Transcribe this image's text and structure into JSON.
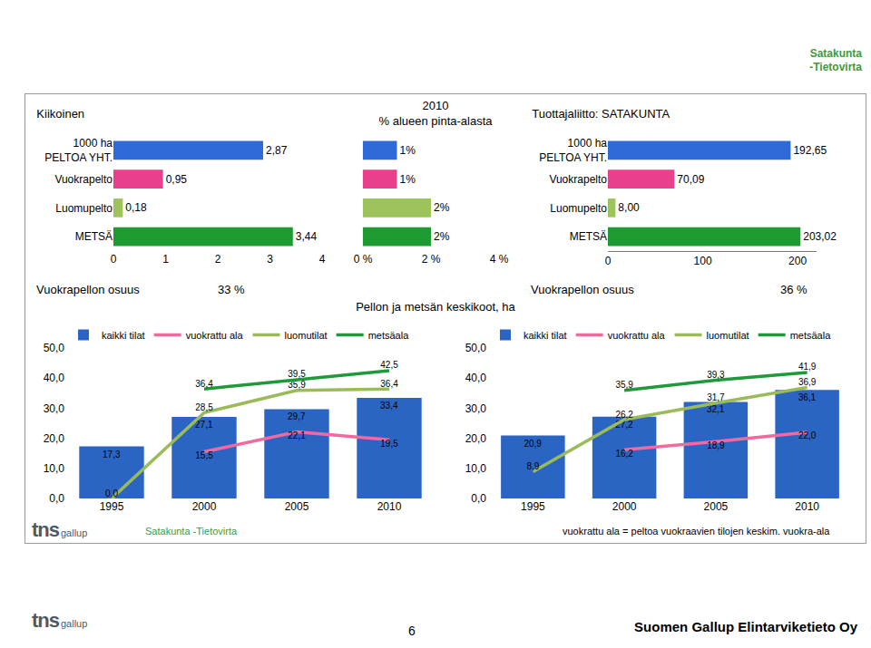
{
  "page": {
    "brand_lines": [
      "Satakunta",
      "-Tietovirta"
    ],
    "brand": "Satakunta -Tietovirta",
    "logo": [
      "tns",
      "gallup"
    ],
    "shares": [
      {
        "label": "Vuokrapellon osuus",
        "value": "33 %"
      },
      {
        "label": "Vuokrapellon osuus",
        "value": "36 %"
      }
    ],
    "section_title": "Pellon ja metsän keskikoot, ha",
    "note": "vuokrattu ala = peltoa vuokraavien tilojen keskim. vuokra-ala",
    "page_number": "6",
    "company": "Suomen Gallup Elintarviketieto Oy"
  },
  "chart_data": [
    {
      "type": "bar",
      "title": "Kiikoinen",
      "orientation": "horizontal",
      "categories": [
        "1000 ha\nPELTOA YHT.",
        "Vuokrapelto",
        "Luomupelto",
        "METSÄ"
      ],
      "values": [
        2.87,
        0.95,
        0.18,
        3.44
      ],
      "value_labels": [
        "2,87",
        "0,95",
        "0,18",
        "3,44"
      ],
      "colors": [
        "#2f6bd8",
        "#e8408a",
        "#9dc35a",
        "#1e9a32"
      ],
      "xlim": [
        0,
        4
      ],
      "xticks": [
        0,
        1,
        2,
        3,
        4
      ],
      "data_labels": true,
      "grid": false
    },
    {
      "type": "bar",
      "title": "2010",
      "subtitle": "% alueen pinta-alasta",
      "orientation": "horizontal",
      "categories": [
        null,
        null,
        null,
        null
      ],
      "values": [
        1,
        1,
        2,
        2
      ],
      "value_labels": [
        "1%",
        "1%",
        "2%",
        "2%"
      ],
      "colors": [
        "#2f6bd8",
        "#e8408a",
        "#9dc35a",
        "#1e9a32"
      ],
      "xlim": [
        0,
        4
      ],
      "xticks": [
        {
          "value": 0,
          "label": "0 %"
        },
        {
          "value": 2,
          "label": "2 %"
        },
        {
          "value": 4,
          "label": "4 %"
        }
      ],
      "tick_labels": "x",
      "data_labels": true,
      "grid": false
    },
    {
      "type": "bar",
      "title": "Tuottajaliitto: SATAKUNTA",
      "orientation": "horizontal",
      "categories": [
        "1000 ha\nPELTOA YHT.",
        "Vuokrapelto",
        "Luomupelto",
        "METSÄ"
      ],
      "values": [
        192.65,
        70.09,
        8.0,
        203.02
      ],
      "value_labels": [
        "192,65",
        "70,09",
        "8,00",
        "203,02"
      ],
      "colors": [
        "#2f6bd8",
        "#e8408a",
        "#9dc35a",
        "#1e9a32"
      ],
      "xlim": [
        0,
        220
      ],
      "xticks": [
        0,
        100,
        200
      ],
      "data_labels": true,
      "grid": false
    },
    {
      "type": "bar",
      "categories": [
        "1995",
        "2000",
        "2005",
        "2010"
      ],
      "series": [
        {
          "name": "kaikki tilat",
          "type": "bar",
          "color": "#2b65c4",
          "values": [
            17.3,
            27.1,
            29.7,
            33.4
          ],
          "value_labels": [
            "17,3",
            "27,1",
            "29,7",
            "33,4"
          ]
        },
        {
          "name": "vuokrattu ala",
          "type": "line",
          "color": "#f06aa0",
          "values": [
            null,
            15.5,
            22.1,
            19.5
          ],
          "value_labels": [
            null,
            "15,5",
            "22,1",
            "19,5"
          ]
        },
        {
          "name": "luomutilat",
          "type": "line",
          "color": "#9bbb59",
          "values": [
            0.0,
            28.5,
            35.9,
            36.4
          ],
          "value_labels": [
            "0,0",
            "28,5",
            "35,9",
            "36,4"
          ]
        },
        {
          "name": "metsäala",
          "type": "line",
          "color": "#1f9a3a",
          "values": [
            null,
            36.4,
            39.5,
            42.5
          ],
          "value_labels": [
            null,
            "36,4",
            "39,5",
            "42,5"
          ]
        }
      ],
      "ylim": [
        0,
        50
      ],
      "yticks": [
        {
          "value": 0,
          "label": "0,0"
        },
        {
          "value": 10,
          "label": "10,0"
        },
        {
          "value": 20,
          "label": "20,0"
        },
        {
          "value": 30,
          "label": "30,0"
        },
        {
          "value": 40,
          "label": "40,0"
        },
        {
          "value": 50,
          "label": "50,0"
        }
      ],
      "legend": "top",
      "data_labels": true,
      "grid": false
    },
    {
      "type": "bar",
      "categories": [
        "1995",
        "2000",
        "2005",
        "2010"
      ],
      "series": [
        {
          "name": "kaikki tilat",
          "type": "bar",
          "color": "#2b65c4",
          "values": [
            20.9,
            27.2,
            32.1,
            36.1
          ],
          "value_labels": [
            "20,9",
            "27,2",
            "32,1",
            "36,1"
          ]
        },
        {
          "name": "vuokrattu ala",
          "type": "line",
          "color": "#f06aa0",
          "values": [
            null,
            16.2,
            18.9,
            22.0
          ],
          "value_labels": [
            null,
            "16,2",
            "18,9",
            "22,0"
          ]
        },
        {
          "name": "luomutilat",
          "type": "line",
          "color": "#9bbb59",
          "values": [
            8.9,
            26.2,
            31.7,
            36.9
          ],
          "value_labels": [
            "8,9",
            "26,2",
            "31,7",
            "36,9"
          ]
        },
        {
          "name": "metsäala",
          "type": "line",
          "color": "#1f9a3a",
          "values": [
            null,
            35.9,
            39.3,
            41.9
          ],
          "value_labels": [
            null,
            "35,9",
            "39,3",
            "41,9"
          ]
        }
      ],
      "ylim": [
        0,
        50
      ],
      "yticks": [
        {
          "value": 0,
          "label": "0,0"
        },
        {
          "value": 10,
          "label": "10,0"
        },
        {
          "value": 20,
          "label": "20,0"
        },
        {
          "value": 30,
          "label": "30,0"
        },
        {
          "value": 40,
          "label": "40,0"
        },
        {
          "value": 50,
          "label": "50,0"
        }
      ],
      "legend": "top",
      "data_labels": true,
      "grid": false
    }
  ]
}
